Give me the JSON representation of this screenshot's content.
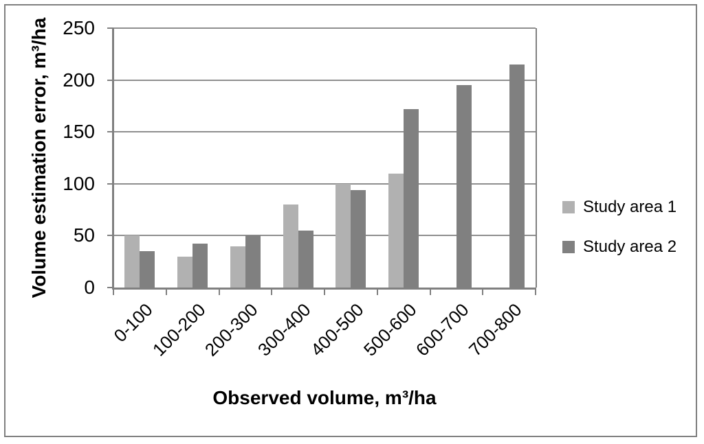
{
  "chart_data": {
    "type": "bar",
    "title": "",
    "categories": [
      "0-100",
      "100-200",
      "200-300",
      "300-400",
      "400-500",
      "500-600",
      "600-700",
      "700-800"
    ],
    "series": [
      {
        "name": "Study area 1",
        "color": "#b1b1b1",
        "values": [
          50,
          30,
          40,
          80,
          100,
          110,
          null,
          null
        ]
      },
      {
        "name": "Study area 2",
        "color": "#808080",
        "values": [
          35,
          42,
          50,
          55,
          94,
          172,
          195,
          215
        ]
      }
    ],
    "xlabel": "Observed volume, m³/ha",
    "ylabel": "Volume estimation error, m³/ha",
    "ylim": [
      0,
      250
    ],
    "yticks": [
      0,
      50,
      100,
      150,
      200,
      250
    ],
    "grid": true,
    "legend_position": "right"
  },
  "colors": {
    "grid_line": "#8e8e8e",
    "axis_line": "#808080",
    "frame_border": "#7f7f7f",
    "text": "#000000"
  }
}
